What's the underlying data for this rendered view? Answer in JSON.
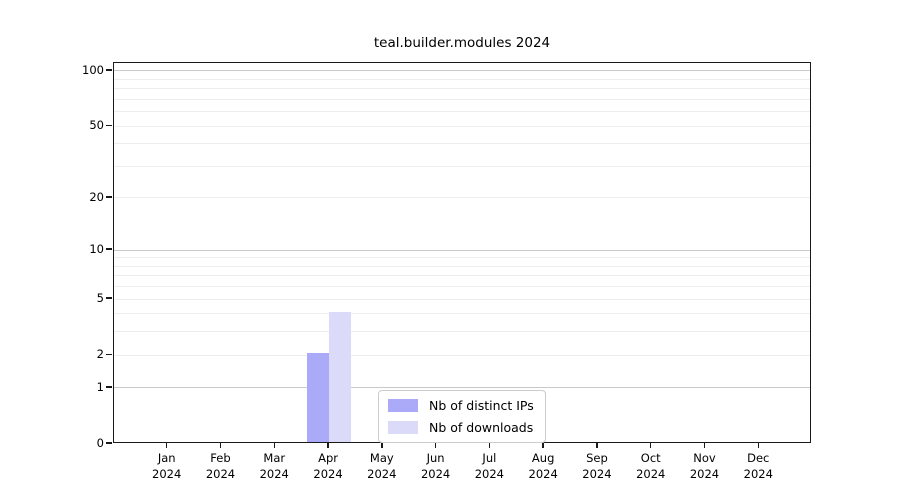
{
  "title": "teal.builder.modules 2024",
  "chart_data": {
    "type": "bar",
    "title": "teal.builder.modules 2024",
    "categories": [
      "Jan",
      "Feb",
      "Mar",
      "Apr",
      "May",
      "Jun",
      "Jul",
      "Aug",
      "Sep",
      "Oct",
      "Nov",
      "Dec"
    ],
    "year_label": "2024",
    "series": [
      {
        "name": "Nb of distinct IPs",
        "color": "#aaaaf8",
        "values": [
          0,
          0,
          0,
          2,
          0,
          0,
          0,
          0,
          0,
          0,
          0,
          0
        ]
      },
      {
        "name": "Nb of downloads",
        "color": "#dbdbf9",
        "values": [
          0,
          0,
          0,
          4,
          0,
          0,
          0,
          0,
          0,
          0,
          0,
          0
        ]
      }
    ],
    "yscale": "log1p",
    "ylim": [
      0,
      110
    ],
    "yticks": [
      0,
      1,
      2,
      5,
      10,
      20,
      50,
      100
    ],
    "major_gridline_values": [
      1,
      10,
      100
    ],
    "minor_gridline_values": [
      2,
      3,
      4,
      5,
      6,
      7,
      8,
      9,
      20,
      30,
      40,
      50,
      60,
      70,
      80,
      90
    ],
    "grid": true,
    "legend_position": "lower-center-inside",
    "xlabel": "",
    "ylabel": ""
  },
  "colors": {
    "bar_distinct_ips": "#aaaaf8",
    "bar_downloads": "#dbdbf9",
    "grid_major": "#c9c9c9",
    "grid_minor": "#ededed",
    "spine": "#1a1a1a",
    "background": "#ffffff"
  }
}
